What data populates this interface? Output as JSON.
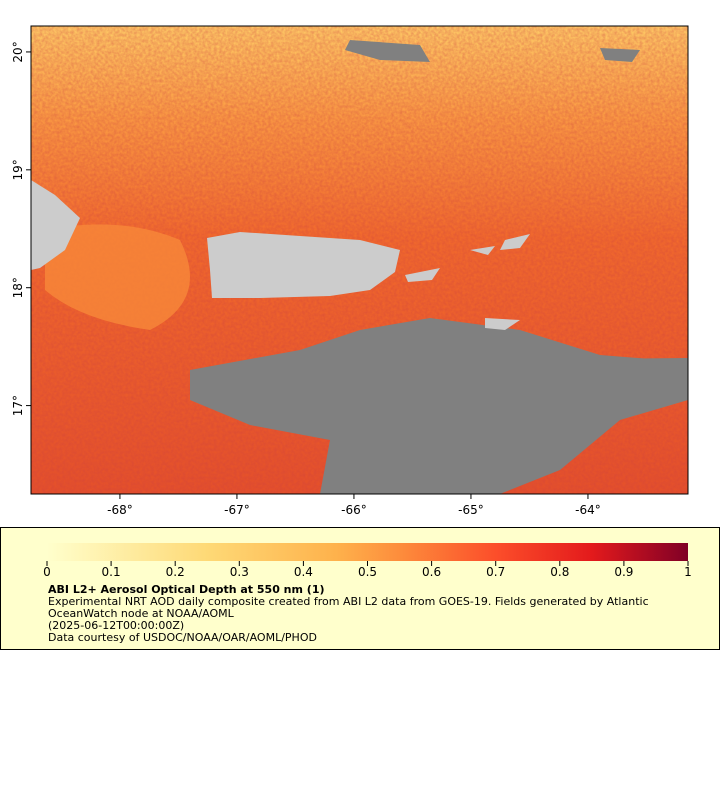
{
  "map": {
    "xlim": [
      -68.76,
      -63.145
    ],
    "ylim": [
      16.25,
      20.22
    ],
    "xticks": [
      {
        "value": -68,
        "label": "-68°"
      },
      {
        "value": -67,
        "label": "-67°"
      },
      {
        "value": -66,
        "label": "-66°"
      },
      {
        "value": -65,
        "label": "-65°"
      },
      {
        "value": -64,
        "label": "-64°"
      }
    ],
    "yticks": [
      {
        "value": 17,
        "label": "17°"
      },
      {
        "value": 18,
        "label": "18°"
      },
      {
        "value": 19,
        "label": "19°"
      },
      {
        "value": 20,
        "label": "20°"
      }
    ]
  },
  "colorbar": {
    "lim": [
      0,
      1
    ],
    "ticks": [
      0,
      0.1,
      0.2,
      0.3,
      0.4,
      0.5,
      0.6,
      0.7,
      0.8,
      0.9,
      1
    ]
  },
  "caption": {
    "title": "ABI L2+ Aerosol Optical Depth at 550 nm (1)",
    "lines": [
      "Experimental NRT AOD daily composite created from ABI L2 data from GOES-19. Fields generated by Atlantic",
      "OceanWatch node at NOAA/AOML",
      "(2025-06-12T00:00:00Z)",
      "Data courtesy of USDOC/NOAA/OAR/AOML/PHOD"
    ]
  }
}
